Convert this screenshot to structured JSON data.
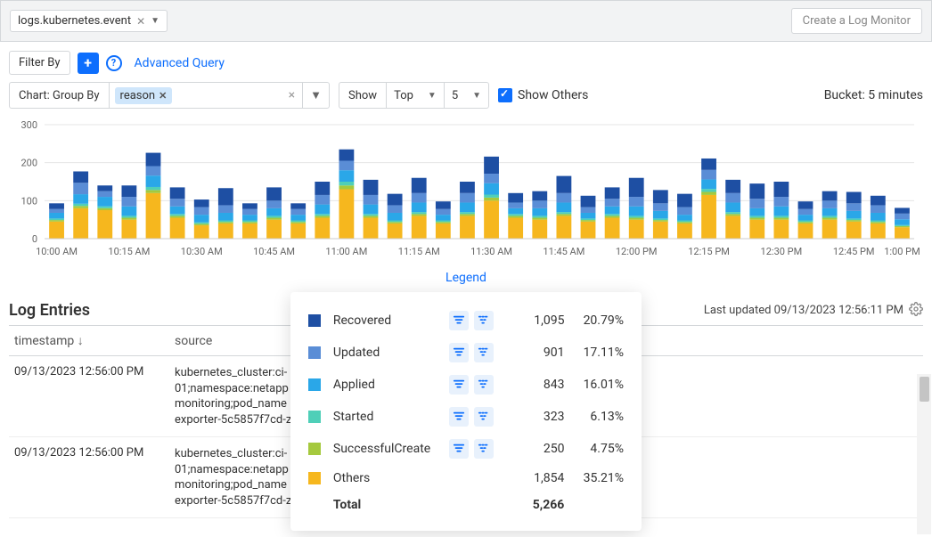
{
  "header": {
    "log_source": "logs.kubernetes.event",
    "create_monitor": "Create a Log Monitor"
  },
  "filters": {
    "filter_by": "Filter By",
    "advanced_query": "Advanced Query",
    "group_by_label": "Chart: Group By",
    "reason_tag": "reason",
    "show_label": "Show",
    "show_mode": "Top",
    "show_count": "5",
    "show_others_label": "Show Others",
    "bucket_label": "Bucket: 5 minutes"
  },
  "chart": {
    "type": "stacked-bar",
    "ymax": 300,
    "yticks": [
      0,
      100,
      200,
      300
    ],
    "xlabels": [
      "10:00 AM",
      "10:15 AM",
      "10:30 AM",
      "10:45 AM",
      "11:00 AM",
      "11:15 AM",
      "11:30 AM",
      "11:45 AM",
      "12:00 PM",
      "12:15 PM",
      "12:30 PM",
      "12:45 PM",
      "1:00 PM"
    ],
    "series_colors": {
      "Recovered": "#1e4fa3",
      "Updated": "#5a8dd6",
      "Applied": "#2aa7e8",
      "Started": "#4fcfb8",
      "SuccessfulCreate": "#a5c93e",
      "Others": "#f6b71e"
    },
    "series_order": [
      "Others",
      "SuccessfulCreate",
      "Started",
      "Applied",
      "Updated",
      "Recovered"
    ],
    "bars": [
      {
        "Others": 45,
        "SuccessfulCreate": 4,
        "Started": 4,
        "Applied": 15,
        "Updated": 10,
        "Recovered": 15
      },
      {
        "Others": 80,
        "SuccessfulCreate": 6,
        "Started": 6,
        "Applied": 25,
        "Updated": 30,
        "Recovered": 30
      },
      {
        "Others": 75,
        "SuccessfulCreate": 5,
        "Started": 5,
        "Applied": 25,
        "Updated": 15,
        "Recovered": 15
      },
      {
        "Others": 50,
        "SuccessfulCreate": 5,
        "Started": 5,
        "Applied": 25,
        "Updated": 25,
        "Recovered": 30
      },
      {
        "Others": 120,
        "SuccessfulCreate": 8,
        "Started": 8,
        "Applied": 30,
        "Updated": 25,
        "Recovered": 35
      },
      {
        "Others": 55,
        "SuccessfulCreate": 5,
        "Started": 5,
        "Applied": 20,
        "Updated": 20,
        "Recovered": 30
      },
      {
        "Others": 35,
        "SuccessfulCreate": 4,
        "Started": 4,
        "Applied": 20,
        "Updated": 20,
        "Recovered": 20
      },
      {
        "Others": 40,
        "SuccessfulCreate": 4,
        "Started": 4,
        "Applied": 20,
        "Updated": 20,
        "Recovered": 45
      },
      {
        "Others": 40,
        "SuccessfulCreate": 4,
        "Started": 4,
        "Applied": 15,
        "Updated": 15,
        "Recovered": 15
      },
      {
        "Others": 50,
        "SuccessfulCreate": 5,
        "Started": 5,
        "Applied": 20,
        "Updated": 20,
        "Recovered": 35
      },
      {
        "Others": 40,
        "SuccessfulCreate": 4,
        "Started": 4,
        "Applied": 15,
        "Updated": 15,
        "Recovered": 15
      },
      {
        "Others": 55,
        "SuccessfulCreate": 5,
        "Started": 5,
        "Applied": 25,
        "Updated": 25,
        "Recovered": 35
      },
      {
        "Others": 130,
        "SuccessfulCreate": 10,
        "Started": 10,
        "Applied": 30,
        "Updated": 25,
        "Recovered": 30
      },
      {
        "Others": 55,
        "SuccessfulCreate": 5,
        "Started": 5,
        "Applied": 25,
        "Updated": 25,
        "Recovered": 40
      },
      {
        "Others": 40,
        "SuccessfulCreate": 4,
        "Started": 4,
        "Applied": 20,
        "Updated": 20,
        "Recovered": 30
      },
      {
        "Others": 60,
        "SuccessfulCreate": 5,
        "Started": 5,
        "Applied": 25,
        "Updated": 25,
        "Recovered": 40
      },
      {
        "Others": 40,
        "SuccessfulCreate": 4,
        "Started": 4,
        "Applied": 15,
        "Updated": 15,
        "Recovered": 20
      },
      {
        "Others": 60,
        "SuccessfulCreate": 5,
        "Started": 5,
        "Applied": 25,
        "Updated": 25,
        "Recovered": 30
      },
      {
        "Others": 100,
        "SuccessfulCreate": 8,
        "Started": 8,
        "Applied": 30,
        "Updated": 25,
        "Recovered": 45
      },
      {
        "Others": 55,
        "SuccessfulCreate": 5,
        "Started": 5,
        "Applied": 15,
        "Updated": 15,
        "Recovered": 25
      },
      {
        "Others": 50,
        "SuccessfulCreate": 5,
        "Started": 5,
        "Applied": 20,
        "Updated": 20,
        "Recovered": 25
      },
      {
        "Others": 60,
        "SuccessfulCreate": 5,
        "Started": 5,
        "Applied": 25,
        "Updated": 25,
        "Recovered": 45
      },
      {
        "Others": 45,
        "SuccessfulCreate": 4,
        "Started": 4,
        "Applied": 15,
        "Updated": 15,
        "Recovered": 30
      },
      {
        "Others": 55,
        "SuccessfulCreate": 5,
        "Started": 5,
        "Applied": 20,
        "Updated": 20,
        "Recovered": 30
      },
      {
        "Others": 50,
        "SuccessfulCreate": 5,
        "Started": 5,
        "Applied": 25,
        "Updated": 25,
        "Recovered": 50
      },
      {
        "Others": 45,
        "SuccessfulCreate": 4,
        "Started": 4,
        "Applied": 20,
        "Updated": 20,
        "Recovered": 35
      },
      {
        "Others": 40,
        "SuccessfulCreate": 4,
        "Started": 4,
        "Applied": 15,
        "Updated": 20,
        "Recovered": 35
      },
      {
        "Others": 115,
        "SuccessfulCreate": 8,
        "Started": 8,
        "Applied": 25,
        "Updated": 25,
        "Recovered": 30
      },
      {
        "Others": 60,
        "SuccessfulCreate": 5,
        "Started": 5,
        "Applied": 25,
        "Updated": 25,
        "Recovered": 35
      },
      {
        "Others": 50,
        "SuccessfulCreate": 5,
        "Started": 5,
        "Applied": 20,
        "Updated": 25,
        "Recovered": 40
      },
      {
        "Others": 50,
        "SuccessfulCreate": 5,
        "Started": 5,
        "Applied": 25,
        "Updated": 25,
        "Recovered": 40
      },
      {
        "Others": 40,
        "SuccessfulCreate": 4,
        "Started": 4,
        "Applied": 15,
        "Updated": 15,
        "Recovered": 20
      },
      {
        "Others": 50,
        "SuccessfulCreate": 5,
        "Started": 5,
        "Applied": 20,
        "Updated": 20,
        "Recovered": 25
      },
      {
        "Others": 45,
        "SuccessfulCreate": 4,
        "Started": 4,
        "Applied": 20,
        "Updated": 20,
        "Recovered": 30
      },
      {
        "Others": 40,
        "SuccessfulCreate": 4,
        "Started": 4,
        "Applied": 20,
        "Updated": 20,
        "Recovered": 25
      },
      {
        "Others": 30,
        "SuccessfulCreate": 3,
        "Started": 3,
        "Applied": 15,
        "Updated": 15,
        "Recovered": 15
      }
    ],
    "legend_label": "Legend"
  },
  "legend": {
    "rows": [
      {
        "name": "Recovered",
        "color": "#1e4fa3",
        "count": "1,095",
        "pct": "20.79%"
      },
      {
        "name": "Updated",
        "color": "#5a8dd6",
        "count": "901",
        "pct": "17.11%"
      },
      {
        "name": "Applied",
        "color": "#2aa7e8",
        "count": "843",
        "pct": "16.01%"
      },
      {
        "name": "Started",
        "color": "#4fcfb8",
        "count": "323",
        "pct": "6.13%"
      },
      {
        "name": "SuccessfulCreate",
        "color": "#a5c93e",
        "count": "250",
        "pct": "4.75%"
      },
      {
        "name": "Others",
        "color": "#f6b71e",
        "count": "1,854",
        "pct": "35.21%"
      }
    ],
    "total_label": "Total",
    "total_value": "5,266"
  },
  "entries": {
    "title": "Log Entries",
    "last_updated": "Last updated 09/13/2023 12:56:11 PM",
    "col_timestamp": "timestamp",
    "col_source": "source",
    "rows": [
      {
        "ts": "09/13/2023 12:56:00 PM",
        "src": "kubernetes_cluster:ci-\n01;namespace:netapp\nmonitoring;pod_name\nexporter-5c5857f7cd-z"
      },
      {
        "ts": "09/13/2023 12:56:00 PM",
        "src": "kubernetes_cluster:ci-\n01;namespace:netapp\nmonitoring;pod_name\nexporter-5c5857f7cd-z"
      }
    ]
  }
}
